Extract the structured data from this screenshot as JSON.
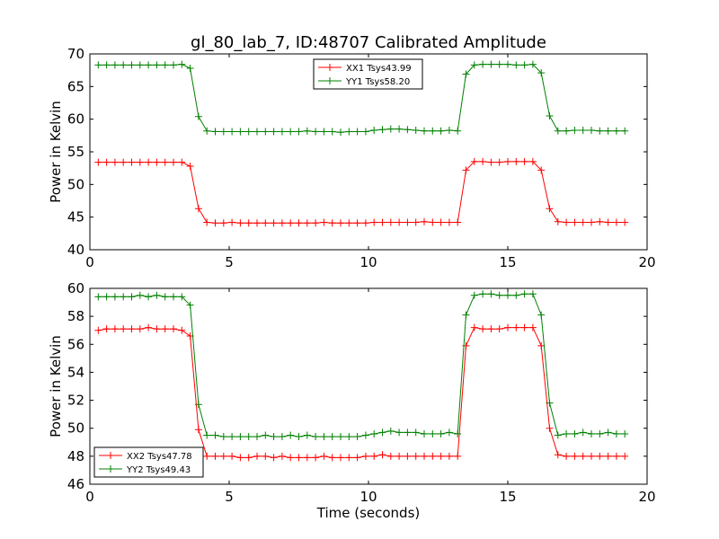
{
  "title": "gl_80_lab_7, ID:48707 Calibrated Amplitude",
  "colors": {
    "red": "#ff0000",
    "green": "#008000",
    "frame": "#000000",
    "background": "#ffffff"
  },
  "chart_data": [
    {
      "type": "line",
      "title": "gl_80_lab_7, ID:48707 Calibrated Amplitude",
      "xlabel": "",
      "ylabel": "Power in Kelvin",
      "xlim": [
        0,
        20
      ],
      "ylim": [
        40,
        70
      ],
      "xticks": [
        0,
        5,
        10,
        15,
        20
      ],
      "yticks": [
        40,
        45,
        50,
        55,
        60,
        65,
        70
      ],
      "grid": false,
      "legend": "top-center",
      "marker": "+",
      "x": [
        0.3,
        0.6,
        0.9,
        1.2,
        1.5,
        1.8,
        2.1,
        2.4,
        2.7,
        3.0,
        3.3,
        3.6,
        3.9,
        4.2,
        4.5,
        4.8,
        5.1,
        5.4,
        5.7,
        6.0,
        6.3,
        6.6,
        6.9,
        7.2,
        7.5,
        7.8,
        8.1,
        8.4,
        8.7,
        9.0,
        9.3,
        9.6,
        9.9,
        10.2,
        10.5,
        10.8,
        11.1,
        11.4,
        11.7,
        12.0,
        12.3,
        12.6,
        12.9,
        13.2,
        13.5,
        13.8,
        14.1,
        14.4,
        14.7,
        15.0,
        15.3,
        15.6,
        15.9,
        16.2,
        16.5,
        16.8,
        17.1,
        17.4,
        17.7,
        18.0,
        18.3,
        18.6,
        18.9,
        19.2
      ],
      "series": [
        {
          "name": "XX1 Tsys43.99",
          "color": "#ff0000",
          "values": [
            53.4,
            53.4,
            53.4,
            53.4,
            53.4,
            53.4,
            53.4,
            53.4,
            53.4,
            53.4,
            53.4,
            52.8,
            46.3,
            44.2,
            44.1,
            44.1,
            44.2,
            44.1,
            44.1,
            44.1,
            44.1,
            44.1,
            44.1,
            44.1,
            44.1,
            44.1,
            44.1,
            44.2,
            44.1,
            44.1,
            44.1,
            44.1,
            44.1,
            44.2,
            44.2,
            44.2,
            44.2,
            44.2,
            44.2,
            44.3,
            44.2,
            44.2,
            44.2,
            44.2,
            52.2,
            53.5,
            53.5,
            53.4,
            53.4,
            53.5,
            53.5,
            53.5,
            53.5,
            52.2,
            46.3,
            44.3,
            44.2,
            44.2,
            44.2,
            44.2,
            44.3,
            44.2,
            44.2,
            44.2
          ]
        },
        {
          "name": "YY1 Tsys58.20",
          "color": "#008000",
          "values": [
            68.3,
            68.3,
            68.3,
            68.3,
            68.3,
            68.3,
            68.3,
            68.3,
            68.3,
            68.3,
            68.4,
            67.8,
            60.4,
            58.2,
            58.1,
            58.1,
            58.1,
            58.1,
            58.1,
            58.1,
            58.1,
            58.1,
            58.1,
            58.1,
            58.1,
            58.2,
            58.1,
            58.1,
            58.1,
            58.0,
            58.1,
            58.1,
            58.1,
            58.3,
            58.4,
            58.5,
            58.5,
            58.4,
            58.3,
            58.2,
            58.2,
            58.2,
            58.3,
            58.2,
            66.9,
            68.3,
            68.4,
            68.4,
            68.4,
            68.4,
            68.3,
            68.3,
            68.4,
            67.1,
            60.5,
            58.2,
            58.2,
            58.3,
            58.3,
            58.3,
            58.2,
            58.2,
            58.2,
            58.2
          ]
        }
      ]
    },
    {
      "type": "line",
      "title": "",
      "xlabel": "Time (seconds)",
      "ylabel": "Power in Kelvin",
      "xlim": [
        0,
        20
      ],
      "ylim": [
        46,
        60
      ],
      "xticks": [
        0,
        5,
        10,
        15,
        20
      ],
      "yticks": [
        46,
        48,
        50,
        52,
        54,
        56,
        58,
        60
      ],
      "grid": false,
      "legend": "lower-left",
      "marker": "+",
      "x": [
        0.3,
        0.6,
        0.9,
        1.2,
        1.5,
        1.8,
        2.1,
        2.4,
        2.7,
        3.0,
        3.3,
        3.6,
        3.9,
        4.2,
        4.5,
        4.8,
        5.1,
        5.4,
        5.7,
        6.0,
        6.3,
        6.6,
        6.9,
        7.2,
        7.5,
        7.8,
        8.1,
        8.4,
        8.7,
        9.0,
        9.3,
        9.6,
        9.9,
        10.2,
        10.5,
        10.8,
        11.1,
        11.4,
        11.7,
        12.0,
        12.3,
        12.6,
        12.9,
        13.2,
        13.5,
        13.8,
        14.1,
        14.4,
        14.7,
        15.0,
        15.3,
        15.6,
        15.9,
        16.2,
        16.5,
        16.8,
        17.1,
        17.4,
        17.7,
        18.0,
        18.3,
        18.6,
        18.9,
        19.2
      ],
      "series": [
        {
          "name": "XX2 Tsys47.78",
          "color": "#ff0000",
          "values": [
            57.0,
            57.1,
            57.1,
            57.1,
            57.1,
            57.1,
            57.2,
            57.1,
            57.1,
            57.1,
            57.0,
            56.6,
            49.9,
            48.0,
            48.0,
            48.0,
            48.0,
            47.9,
            47.9,
            48.0,
            48.0,
            47.9,
            48.0,
            47.9,
            47.9,
            47.9,
            47.9,
            48.0,
            47.9,
            47.9,
            47.9,
            47.9,
            48.0,
            48.0,
            48.1,
            48.0,
            48.0,
            48.0,
            48.0,
            48.0,
            48.0,
            48.0,
            48.0,
            48.0,
            55.9,
            57.2,
            57.1,
            57.1,
            57.1,
            57.2,
            57.2,
            57.2,
            57.2,
            55.9,
            50.0,
            48.1,
            48.0,
            48.0,
            48.0,
            48.0,
            48.0,
            48.0,
            48.0,
            48.0
          ]
        },
        {
          "name": "YY2 Tsys49.43",
          "color": "#008000",
          "values": [
            59.4,
            59.4,
            59.4,
            59.4,
            59.4,
            59.5,
            59.4,
            59.5,
            59.4,
            59.4,
            59.4,
            58.8,
            51.7,
            49.5,
            49.5,
            49.4,
            49.4,
            49.4,
            49.4,
            49.4,
            49.5,
            49.4,
            49.4,
            49.5,
            49.4,
            49.5,
            49.4,
            49.4,
            49.4,
            49.4,
            49.4,
            49.4,
            49.5,
            49.6,
            49.7,
            49.8,
            49.7,
            49.7,
            49.7,
            49.6,
            49.6,
            49.6,
            49.7,
            49.6,
            58.1,
            59.5,
            59.6,
            59.6,
            59.5,
            59.5,
            59.5,
            59.6,
            59.6,
            58.1,
            51.8,
            49.5,
            49.6,
            49.6,
            49.7,
            49.6,
            49.6,
            49.7,
            49.6,
            49.6
          ]
        }
      ]
    }
  ]
}
